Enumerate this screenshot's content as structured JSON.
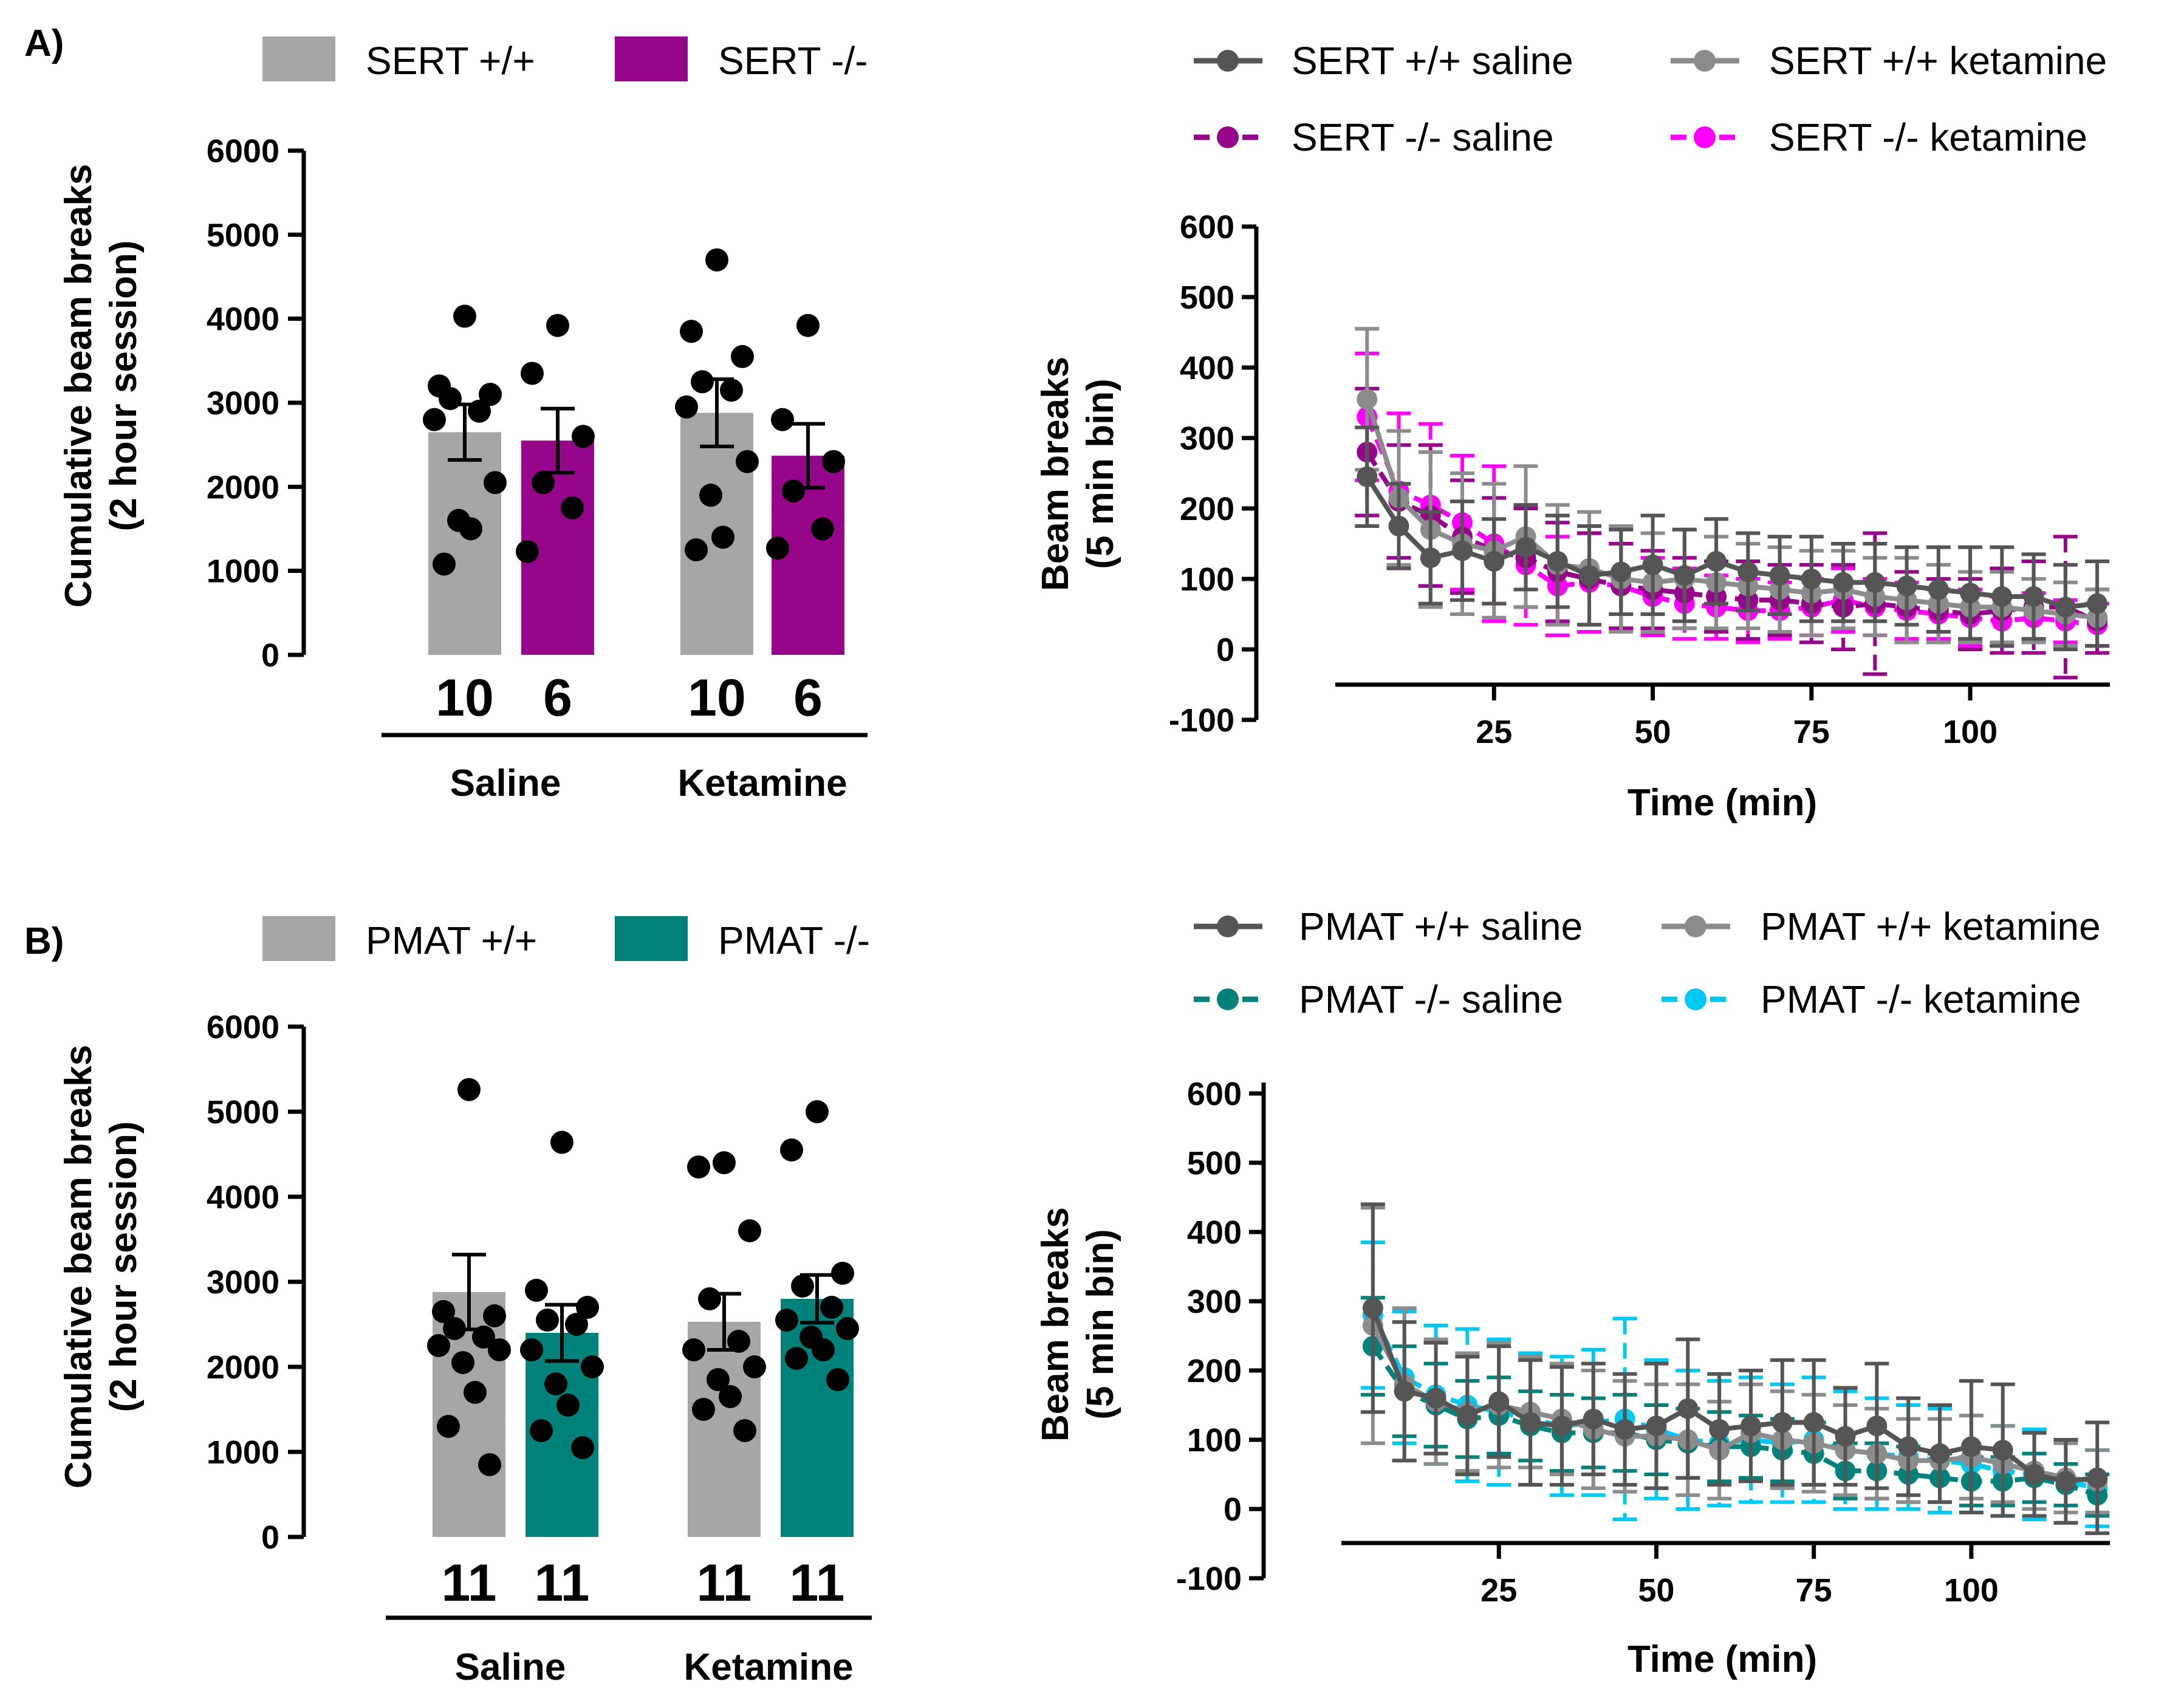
{
  "chart_data": [
    {
      "id": "A-bar",
      "panel_label": "A)",
      "type": "bar",
      "legend": [
        {
          "name": "SERT +/+",
          "color": "#a6a6a6"
        },
        {
          "name": "SERT -/-",
          "color": "#96068a"
        }
      ],
      "ylabel_line1": "Cumulative beam breaks",
      "ylabel_line2": "(2 hour session)",
      "ylim": [
        0,
        6000
      ],
      "yticks": [
        "6000",
        "5000",
        "4000",
        "3000",
        "2000",
        "1000",
        "0"
      ],
      "groups": [
        "Saline",
        "Ketamine"
      ],
      "bars": [
        {
          "group": "Saline",
          "series": "SERT +/+",
          "color": "#a6a6a6",
          "mean": 2650,
          "sem": 330,
          "n": "10",
          "points": [
            4030,
            3200,
            3100,
            3050,
            2900,
            2800,
            2050,
            1600,
            1500,
            1080
          ]
        },
        {
          "group": "Saline",
          "series": "SERT -/-",
          "color": "#96068a",
          "mean": 2550,
          "sem": 380,
          "n": "6",
          "points": [
            3920,
            3350,
            2600,
            2050,
            1750,
            1230
          ]
        },
        {
          "group": "Ketamine",
          "series": "SERT +/+",
          "color": "#a6a6a6",
          "mean": 2880,
          "sem": 400,
          "n": "10",
          "points": [
            4700,
            3850,
            3550,
            3250,
            3150,
            2950,
            2300,
            1900,
            1400,
            1250
          ]
        },
        {
          "group": "Ketamine",
          "series": "SERT -/-",
          "color": "#96068a",
          "mean": 2370,
          "sem": 380,
          "n": "6",
          "points": [
            3920,
            2800,
            2300,
            1950,
            1500,
            1270
          ]
        }
      ]
    },
    {
      "id": "A-line",
      "type": "line",
      "legend": [
        {
          "name": "SERT +/+ saline",
          "color": "#555555",
          "dashed": false
        },
        {
          "name": "SERT +/+ ketamine",
          "color": "#8c8c8c",
          "dashed": false
        },
        {
          "name": "SERT -/- saline",
          "color": "#96068a",
          "dashed": true
        },
        {
          "name": "SERT -/- ketamine",
          "color": "#ff00ff",
          "dashed": true
        }
      ],
      "ylabel_line1": "Beam breaks",
      "ylabel_line2": "(5 min bin)",
      "xlabel": "Time (min)",
      "ylim": [
        -100,
        600
      ],
      "yticks": [
        "600",
        "500",
        "400",
        "300",
        "200",
        "100",
        "0",
        "-100"
      ],
      "xlim": [
        0,
        122
      ],
      "xticks": [
        "25",
        "50",
        "75",
        "100"
      ],
      "x": [
        5,
        10,
        15,
        20,
        25,
        30,
        35,
        40,
        45,
        50,
        55,
        60,
        65,
        70,
        75,
        80,
        85,
        90,
        95,
        100,
        105,
        110,
        115,
        120
      ],
      "series": [
        {
          "name": "SERT -/- ketamine",
          "color": "#ff00ff",
          "dashed": true,
          "values": [
            330,
            225,
            205,
            180,
            150,
            120,
            90,
            95,
            90,
            75,
            65,
            60,
            55,
            55,
            60,
            70,
            60,
            55,
            50,
            45,
            40,
            45,
            40,
            35
          ],
          "err": [
            90,
            110,
            115,
            95,
            110,
            85,
            70,
            70,
            60,
            55,
            50,
            45,
            45,
            40,
            40,
            45,
            40,
            40,
            35,
            40,
            35,
            35,
            30,
            30
          ]
        },
        {
          "name": "SERT -/- saline",
          "color": "#96068a",
          "dashed": true,
          "values": [
            280,
            210,
            190,
            160,
            140,
            130,
            110,
            100,
            90,
            85,
            80,
            75,
            70,
            70,
            65,
            60,
            65,
            60,
            55,
            50,
            55,
            60,
            60,
            40
          ],
          "err": [
            90,
            80,
            100,
            80,
            75,
            70,
            70,
            65,
            60,
            55,
            50,
            50,
            55,
            50,
            55,
            60,
            100,
            50,
            45,
            50,
            60,
            65,
            100,
            45
          ]
        },
        {
          "name": "SERT +/+ ketamine",
          "color": "#8c8c8c",
          "dashed": false,
          "values": [
            355,
            215,
            170,
            150,
            140,
            160,
            120,
            115,
            100,
            95,
            100,
            95,
            90,
            85,
            80,
            85,
            75,
            70,
            65,
            60,
            60,
            55,
            50,
            45
          ],
          "err": [
            100,
            95,
            110,
            100,
            95,
            100,
            85,
            80,
            75,
            70,
            70,
            65,
            60,
            60,
            60,
            55,
            55,
            60,
            55,
            50,
            50,
            45,
            45,
            40
          ]
        },
        {
          "name": "SERT +/+ saline",
          "color": "#555555",
          "dashed": false,
          "values": [
            245,
            175,
            130,
            140,
            125,
            145,
            125,
            105,
            110,
            120,
            105,
            125,
            110,
            105,
            100,
            95,
            95,
            90,
            85,
            80,
            75,
            75,
            60,
            65
          ],
          "err": [
            70,
            60,
            65,
            70,
            60,
            60,
            65,
            70,
            60,
            70,
            65,
            60,
            55,
            55,
            60,
            55,
            55,
            55,
            60,
            65,
            70,
            60,
            60,
            60
          ]
        }
      ]
    },
    {
      "id": "B-bar",
      "panel_label": "B)",
      "type": "bar",
      "legend": [
        {
          "name": "PMAT +/+",
          "color": "#a6a6a6"
        },
        {
          "name": "PMAT -/-",
          "color": "#00827a"
        }
      ],
      "ylabel_line1": "Cumulative beam breaks",
      "ylabel_line2": "(2 hour session)",
      "ylim": [
        0,
        6000
      ],
      "yticks": [
        "6000",
        "5000",
        "4000",
        "3000",
        "2000",
        "1000",
        "0"
      ],
      "groups": [
        "Saline",
        "Ketamine"
      ],
      "bars": [
        {
          "group": "Saline",
          "series": "PMAT +/+",
          "color": "#a6a6a6",
          "mean": 2880,
          "sem": 440,
          "n": "11",
          "points": [
            5260,
            2650,
            2600,
            2450,
            2350,
            2250,
            2200,
            2050,
            1700,
            1300,
            850
          ]
        },
        {
          "group": "Saline",
          "series": "PMAT -/-",
          "color": "#00827a",
          "mean": 2400,
          "sem": 330,
          "n": "11",
          "points": [
            4640,
            2900,
            2700,
            2550,
            2500,
            2200,
            2000,
            1800,
            1550,
            1250,
            1050
          ]
        },
        {
          "group": "Ketamine",
          "series": "PMAT +/+",
          "color": "#a6a6a6",
          "mean": 2530,
          "sem": 330,
          "n": "11",
          "points": [
            4400,
            4350,
            3600,
            2800,
            2300,
            2200,
            2000,
            1850,
            1650,
            1500,
            1250
          ]
        },
        {
          "group": "Ketamine",
          "series": "PMAT -/-",
          "color": "#00827a",
          "mean": 2800,
          "sem": 280,
          "n": "11",
          "points": [
            5000,
            4550,
            3100,
            2950,
            2700,
            2550,
            2450,
            2350,
            2200,
            2100,
            1850
          ]
        }
      ]
    },
    {
      "id": "B-line",
      "type": "line",
      "legend": [
        {
          "name": "PMAT +/+ saline",
          "color": "#555555",
          "dashed": false
        },
        {
          "name": "PMAT +/+ ketamine",
          "color": "#8c8c8c",
          "dashed": false
        },
        {
          "name": "PMAT -/- saline",
          "color": "#00827a",
          "dashed": true
        },
        {
          "name": "PMAT -/- ketamine",
          "color": "#00c8f0",
          "dashed": true
        }
      ],
      "ylabel_line1": "Beam breaks",
      "ylabel_line2": "(5 min bin)",
      "xlabel": "Time (min)",
      "ylim": [
        -100,
        600
      ],
      "yticks": [
        "600",
        "500",
        "400",
        "300",
        "200",
        "100",
        "0",
        "-100"
      ],
      "xlim": [
        0,
        122
      ],
      "xticks": [
        "25",
        "50",
        "75",
        "100"
      ],
      "x": [
        5,
        10,
        15,
        20,
        25,
        30,
        35,
        40,
        45,
        50,
        55,
        60,
        65,
        70,
        75,
        80,
        85,
        90,
        95,
        100,
        105,
        110,
        115,
        120
      ],
      "series": [
        {
          "name": "PMAT -/- ketamine",
          "color": "#00c8f0",
          "dashed": true,
          "values": [
            280,
            190,
            165,
            150,
            140,
            130,
            120,
            125,
            130,
            115,
            100,
            95,
            100,
            95,
            100,
            85,
            80,
            75,
            70,
            65,
            55,
            50,
            40,
            30
          ],
          "err": [
            105,
            95,
            100,
            110,
            105,
            95,
            100,
            105,
            145,
            100,
            100,
            90,
            90,
            85,
            90,
            85,
            80,
            75,
            75,
            70,
            65,
            65,
            60,
            55
          ]
        },
        {
          "name": "PMAT -/- saline",
          "color": "#00827a",
          "dashed": true,
          "values": [
            235,
            170,
            150,
            130,
            135,
            120,
            110,
            110,
            110,
            100,
            95,
            90,
            90,
            85,
            80,
            55,
            55,
            50,
            45,
            40,
            40,
            45,
            35,
            20
          ],
          "err": [
            70,
            65,
            60,
            55,
            55,
            50,
            55,
            50,
            55,
            50,
            50,
            50,
            45,
            45,
            45,
            40,
            40,
            40,
            35,
            35,
            35,
            35,
            30,
            30
          ]
        },
        {
          "name": "PMAT +/+ ketamine",
          "color": "#8c8c8c",
          "dashed": false,
          "values": [
            265,
            180,
            155,
            140,
            150,
            140,
            130,
            115,
            105,
            105,
            100,
            85,
            110,
            100,
            95,
            85,
            80,
            70,
            70,
            75,
            65,
            55,
            45,
            40
          ],
          "err": [
            170,
            110,
            90,
            85,
            90,
            80,
            80,
            85,
            80,
            75,
            80,
            70,
            70,
            70,
            70,
            65,
            65,
            60,
            60,
            60,
            55,
            55,
            50,
            45
          ]
        },
        {
          "name": "PMAT +/+ saline",
          "color": "#555555",
          "dashed": false,
          "values": [
            290,
            170,
            160,
            135,
            155,
            125,
            120,
            130,
            115,
            120,
            145,
            115,
            120,
            125,
            125,
            105,
            120,
            90,
            80,
            90,
            85,
            50,
            40,
            45
          ],
          "err": [
            150,
            100,
            80,
            85,
            80,
            90,
            85,
            80,
            80,
            90,
            100,
            80,
            80,
            90,
            90,
            70,
            90,
            70,
            70,
            95,
            95,
            60,
            60,
            80
          ]
        }
      ]
    }
  ]
}
